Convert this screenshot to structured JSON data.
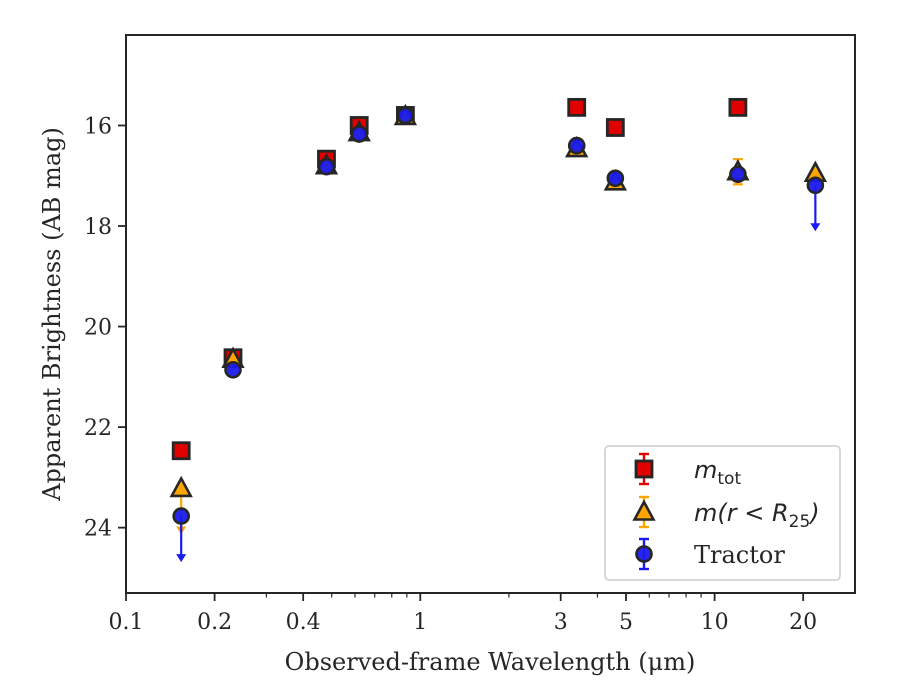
{
  "chart_data": {
    "type": "scatter",
    "title": "",
    "xlabel": "Observed-frame Wavelength (μm)",
    "ylabel": "Apparent Brightness (AB mag)",
    "x_scale": "log",
    "xlim": [
      0.1,
      30
    ],
    "ylim": [
      25.3,
      14.2
    ],
    "y_inverted": true,
    "x_ticks": [
      0.1,
      0.2,
      0.4,
      1,
      3,
      5,
      10,
      20
    ],
    "x_tick_labels": [
      "0.1",
      "0.2",
      "0.4",
      "1",
      "3",
      "5",
      "10",
      "20"
    ],
    "y_ticks": [
      16,
      18,
      20,
      22,
      24
    ],
    "y_tick_labels": [
      "16",
      "18",
      "20",
      "22",
      "24"
    ],
    "grid": false,
    "legend_position": "lower-right",
    "series": [
      {
        "name": "m_tot",
        "marker": "square",
        "color": "#e00000",
        "edge_color": "#262626",
        "points": [
          {
            "x": 0.154,
            "y": 22.47
          },
          {
            "x": 0.231,
            "y": 20.62
          },
          {
            "x": 0.48,
            "y": 16.67
          },
          {
            "x": 0.62,
            "y": 16.0
          },
          {
            "x": 0.89,
            "y": 15.8
          },
          {
            "x": 3.4,
            "y": 15.64
          },
          {
            "x": 4.6,
            "y": 16.04
          },
          {
            "x": 12.0,
            "y": 15.64
          }
        ]
      },
      {
        "name": "m(r < R25)",
        "marker": "triangle",
        "color": "#ffa500",
        "edge_color": "#262626",
        "points": [
          {
            "x": 0.154,
            "y": 23.22,
            "upper_limit": true
          },
          {
            "x": 0.231,
            "y": 20.65
          },
          {
            "x": 0.48,
            "y": 16.8
          },
          {
            "x": 0.62,
            "y": 16.14
          },
          {
            "x": 0.89,
            "y": 15.82
          },
          {
            "x": 3.4,
            "y": 16.46
          },
          {
            "x": 4.6,
            "y": 17.12
          },
          {
            "x": 12.0,
            "y": 16.92,
            "err": 0.25
          },
          {
            "x": 22.0,
            "y": 16.95
          }
        ]
      },
      {
        "name": "Tractor",
        "marker": "circle",
        "color": "#1a1aee",
        "edge_color": "#262626",
        "points": [
          {
            "x": 0.154,
            "y": 23.77,
            "upper_limit": true
          },
          {
            "x": 0.231,
            "y": 20.86
          },
          {
            "x": 0.48,
            "y": 16.82
          },
          {
            "x": 0.62,
            "y": 16.17
          },
          {
            "x": 0.89,
            "y": 15.8
          },
          {
            "x": 3.4,
            "y": 16.4
          },
          {
            "x": 4.6,
            "y": 17.05
          },
          {
            "x": 12.0,
            "y": 16.97
          },
          {
            "x": 22.0,
            "y": 17.19,
            "upper_limit": true
          }
        ]
      }
    ]
  },
  "legend": {
    "items": [
      {
        "key": "mtot",
        "base": "m",
        "sub": "tot"
      },
      {
        "key": "mr",
        "text_pre": "m(r < R",
        "sub": "25",
        "text_post": ")"
      },
      {
        "key": "tractor",
        "text": "Tractor"
      }
    ]
  }
}
